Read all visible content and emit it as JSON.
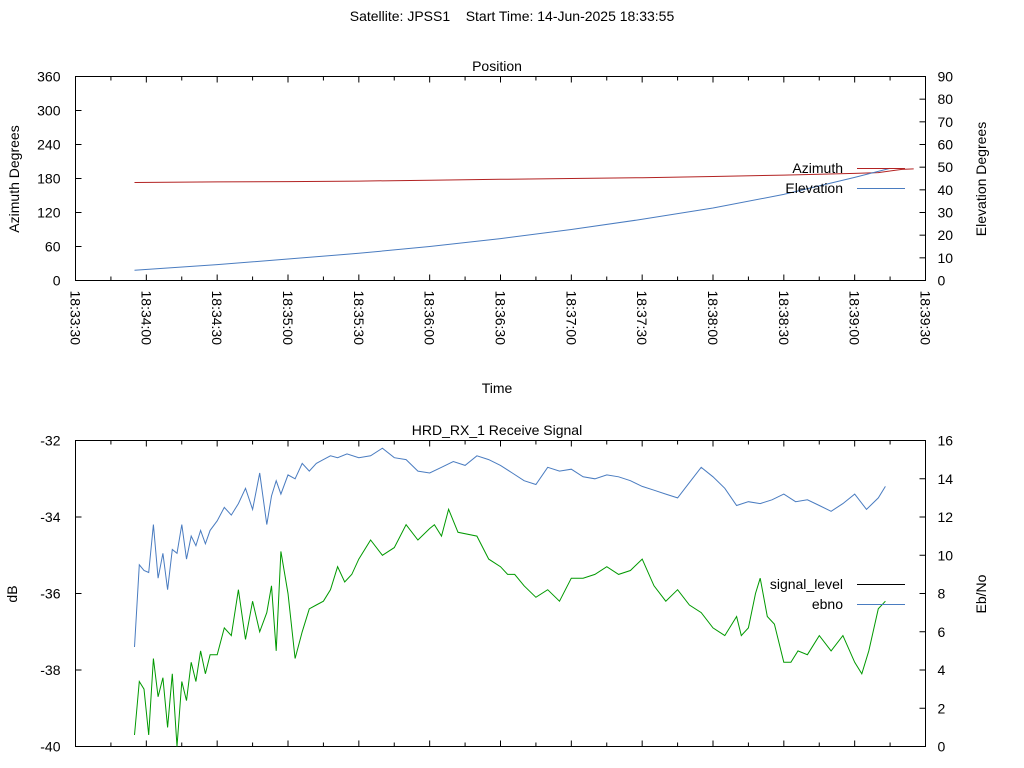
{
  "header": {
    "satellite": "Satellite: JPSS1",
    "start_time": "Start Time: 14-Jun-2025 18:33:55"
  },
  "chart_data": [
    {
      "type": "line",
      "title": "Position",
      "xlabel": "Time",
      "ylabel": "Azimuth Degrees",
      "y2label": "Elevation Degrees",
      "xlim": [
        "18:33:30",
        "18:39:30"
      ],
      "ylim": [
        0,
        360
      ],
      "y2lim": [
        0,
        90
      ],
      "xticks": [
        "18:33:30",
        "18:34:00",
        "18:34:30",
        "18:35:00",
        "18:35:30",
        "18:36:00",
        "18:36:30",
        "18:37:00",
        "18:37:30",
        "18:38:00",
        "18:38:30",
        "18:39:00",
        "18:39:30"
      ],
      "yticks": [
        0,
        60,
        120,
        180,
        240,
        300,
        360
      ],
      "y2ticks": [
        0,
        10,
        20,
        30,
        40,
        50,
        60,
        70,
        80,
        90
      ],
      "legend_position": "right",
      "series": [
        {
          "name": "Azimuth",
          "axis": "y1",
          "color": "#b22222",
          "x": [
            "18:33:55",
            "18:34:30",
            "18:35:00",
            "18:35:30",
            "18:36:00",
            "18:36:30",
            "18:37:00",
            "18:37:30",
            "18:38:00",
            "18:38:30",
            "18:39:00",
            "18:39:10",
            "18:39:20",
            "18:39:25"
          ],
          "values": [
            173,
            174,
            174.5,
            175.5,
            177,
            178.5,
            180,
            181.5,
            183.5,
            186,
            189,
            190.5,
            196,
            197
          ]
        },
        {
          "name": "Elevation",
          "axis": "y2",
          "color": "#4a7cc0",
          "x": [
            "18:33:55",
            "18:34:30",
            "18:35:00",
            "18:35:30",
            "18:36:00",
            "18:36:30",
            "18:37:00",
            "18:37:30",
            "18:38:00",
            "18:38:30",
            "18:39:00",
            "18:39:15"
          ],
          "values": [
            4.5,
            7,
            9.5,
            12,
            15,
            18.5,
            22.5,
            27,
            32,
            38,
            45.5,
            49.5
          ]
        }
      ]
    },
    {
      "type": "line",
      "title": "HRD_RX_1 Receive Signal",
      "ylabel": "dB",
      "y2label": "Eb/No",
      "xlim": [
        "18:33:30",
        "18:39:30"
      ],
      "ylim": [
        -40,
        -32
      ],
      "y2lim": [
        0,
        16
      ],
      "yticks": [
        -40,
        -38,
        -36,
        -34,
        -32
      ],
      "y2ticks": [
        0,
        2,
        4,
        6,
        8,
        10,
        12,
        14,
        16
      ],
      "legend_position": "right",
      "series": [
        {
          "name": "signal_level",
          "axis": "y1",
          "color": "#009900",
          "legend_color": "#000000",
          "x": [
            "18:33:55",
            "18:33:57",
            "18:33:59",
            "18:34:01",
            "18:34:03",
            "18:34:05",
            "18:34:07",
            "18:34:09",
            "18:34:11",
            "18:34:13",
            "18:34:15",
            "18:34:17",
            "18:34:19",
            "18:34:21",
            "18:34:23",
            "18:34:25",
            "18:34:27",
            "18:34:30",
            "18:34:33",
            "18:34:36",
            "18:34:39",
            "18:34:42",
            "18:34:45",
            "18:34:48",
            "18:34:51",
            "18:34:53",
            "18:34:55",
            "18:34:57",
            "18:35:00",
            "18:35:03",
            "18:35:06",
            "18:35:09",
            "18:35:12",
            "18:35:15",
            "18:35:18",
            "18:35:21",
            "18:35:24",
            "18:35:27",
            "18:35:30",
            "18:35:35",
            "18:35:40",
            "18:35:45",
            "18:35:50",
            "18:35:55",
            "18:36:00",
            "18:36:02",
            "18:36:05",
            "18:36:08",
            "18:36:12",
            "18:36:20",
            "18:36:25",
            "18:36:30",
            "18:36:33",
            "18:36:36",
            "18:36:40",
            "18:36:45",
            "18:36:50",
            "18:36:55",
            "18:37:00",
            "18:37:05",
            "18:37:10",
            "18:37:15",
            "18:37:20",
            "18:37:25",
            "18:37:30",
            "18:37:35",
            "18:37:40",
            "18:37:45",
            "18:37:50",
            "18:37:55",
            "18:38:00",
            "18:38:05",
            "18:38:10",
            "18:38:12",
            "18:38:15",
            "18:38:18",
            "18:38:20",
            "18:38:23",
            "18:38:26",
            "18:38:30",
            "18:38:33",
            "18:38:36",
            "18:38:40",
            "18:38:45",
            "18:38:50",
            "18:38:55",
            "18:39:00",
            "18:39:03",
            "18:39:06",
            "18:39:10",
            "18:39:13"
          ],
          "values": [
            -39.7,
            -38.3,
            -38.5,
            -39.7,
            -37.7,
            -38.7,
            -38.2,
            -39.5,
            -38.1,
            -40,
            -38.3,
            -38.8,
            -37.8,
            -38.3,
            -37.5,
            -38.1,
            -37.6,
            -37.6,
            -36.9,
            -37.1,
            -35.9,
            -37.2,
            -36.2,
            -37,
            -36.5,
            -35.8,
            -37.5,
            -34.9,
            -36,
            -37.7,
            -37,
            -36.4,
            -36.3,
            -36.2,
            -35.9,
            -35.3,
            -35.7,
            -35.5,
            -35.1,
            -34.6,
            -35,
            -34.8,
            -34.2,
            -34.6,
            -34.3,
            -34.2,
            -34.5,
            -33.8,
            -34.4,
            -34.5,
            -35.1,
            -35.3,
            -35.5,
            -35.5,
            -35.8,
            -36.1,
            -35.9,
            -36.2,
            -35.6,
            -35.6,
            -35.5,
            -35.3,
            -35.5,
            -35.4,
            -35.1,
            -35.8,
            -36.2,
            -35.9,
            -36.3,
            -36.5,
            -36.9,
            -37.1,
            -36.6,
            -37.1,
            -36.9,
            -36,
            -35.6,
            -36.6,
            -36.8,
            -37.8,
            -37.8,
            -37.5,
            -37.6,
            -37.1,
            -37.5,
            -37.1,
            -37.8,
            -38.1,
            -37.5,
            -36.4,
            -36.2
          ]
        },
        {
          "name": "ebno",
          "axis": "y2",
          "color": "#4a7cc0",
          "x": [
            "18:33:55",
            "18:33:57",
            "18:33:59",
            "18:34:01",
            "18:34:03",
            "18:34:05",
            "18:34:07",
            "18:34:09",
            "18:34:11",
            "18:34:13",
            "18:34:15",
            "18:34:17",
            "18:34:19",
            "18:34:21",
            "18:34:23",
            "18:34:25",
            "18:34:27",
            "18:34:30",
            "18:34:33",
            "18:34:36",
            "18:34:39",
            "18:34:42",
            "18:34:45",
            "18:34:48",
            "18:34:51",
            "18:34:53",
            "18:34:55",
            "18:34:57",
            "18:35:00",
            "18:35:03",
            "18:35:06",
            "18:35:09",
            "18:35:12",
            "18:35:15",
            "18:35:18",
            "18:35:21",
            "18:35:25",
            "18:35:30",
            "18:35:35",
            "18:35:40",
            "18:35:45",
            "18:35:50",
            "18:35:55",
            "18:36:00",
            "18:36:05",
            "18:36:10",
            "18:36:15",
            "18:36:20",
            "18:36:25",
            "18:36:30",
            "18:36:35",
            "18:36:40",
            "18:36:45",
            "18:36:50",
            "18:36:55",
            "18:37:00",
            "18:37:05",
            "18:37:10",
            "18:37:15",
            "18:37:20",
            "18:37:25",
            "18:37:30",
            "18:37:35",
            "18:37:40",
            "18:37:45",
            "18:37:50",
            "18:37:55",
            "18:38:00",
            "18:38:05",
            "18:38:10",
            "18:38:15",
            "18:38:20",
            "18:38:25",
            "18:38:30",
            "18:38:35",
            "18:38:40",
            "18:38:45",
            "18:38:50",
            "18:38:55",
            "18:39:00",
            "18:39:05",
            "18:39:10",
            "18:39:13"
          ],
          "values": [
            5.2,
            9.5,
            9.2,
            9.1,
            11.6,
            8.8,
            10.1,
            8.2,
            10.3,
            10.1,
            11.6,
            9.8,
            11,
            10.5,
            11.3,
            10.6,
            11.3,
            11.8,
            12.5,
            12.1,
            12.7,
            13.5,
            12.4,
            14.3,
            11.6,
            13.1,
            13.9,
            13.2,
            14.2,
            14,
            14.8,
            14.4,
            14.8,
            15,
            15.2,
            15.1,
            15.3,
            15.1,
            15.2,
            15.6,
            15.1,
            15,
            14.4,
            14.3,
            14.6,
            14.9,
            14.7,
            15.2,
            15,
            14.7,
            14.3,
            13.9,
            13.7,
            14.6,
            14.4,
            14.5,
            14.1,
            14,
            14.2,
            14.1,
            13.9,
            13.6,
            13.4,
            13.2,
            13,
            13.8,
            14.6,
            14.1,
            13.5,
            12.6,
            12.8,
            12.7,
            12.9,
            13.2,
            12.8,
            12.9,
            12.6,
            12.3,
            12.7,
            13.2,
            12.4,
            13,
            13.6
          ]
        }
      ]
    }
  ]
}
